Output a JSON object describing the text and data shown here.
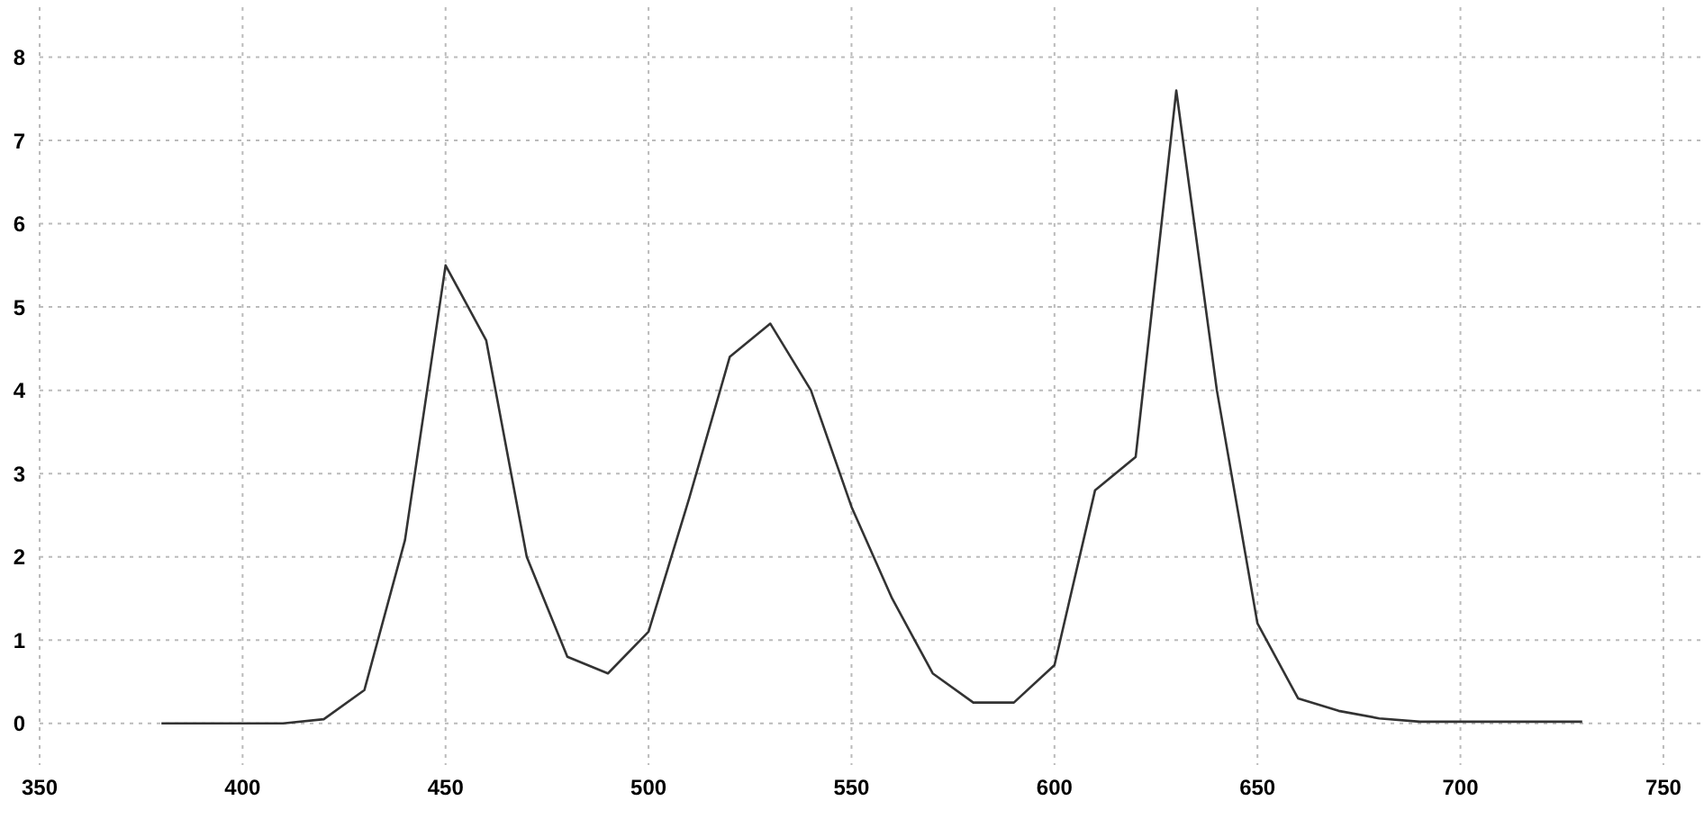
{
  "chart_data": {
    "type": "line",
    "x": [
      380,
      390,
      400,
      410,
      420,
      430,
      440,
      450,
      460,
      470,
      480,
      490,
      500,
      510,
      520,
      530,
      540,
      550,
      560,
      570,
      580,
      590,
      600,
      610,
      620,
      630,
      640,
      650,
      660,
      670,
      680,
      690,
      700,
      710,
      720,
      730
    ],
    "series": [
      {
        "color": "#333333",
        "values": [
          0,
          0,
          0,
          0,
          0.05,
          0.4,
          2.2,
          5.5,
          4.6,
          2.0,
          0.8,
          0.6,
          1.1,
          2.7,
          4.4,
          4.8,
          4.0,
          2.6,
          1.5,
          0.6,
          0.25,
          0.25,
          0.7,
          2.8,
          3.2,
          7.6,
          4.0,
          1.2,
          0.3,
          0.15,
          0.06,
          0.02,
          0.02,
          0.02,
          0.02,
          0.02
        ]
      }
    ],
    "xlim": [
      350,
      760
    ],
    "xticks": [
      350,
      400,
      450,
      500,
      550,
      600,
      650,
      700,
      750
    ],
    "ylim": [
      -0.5,
      8.6
    ],
    "yticks": [
      0,
      1,
      2,
      3,
      4,
      5,
      6,
      7,
      8
    ],
    "grid": true,
    "marker": "none",
    "line_style": "solid"
  }
}
